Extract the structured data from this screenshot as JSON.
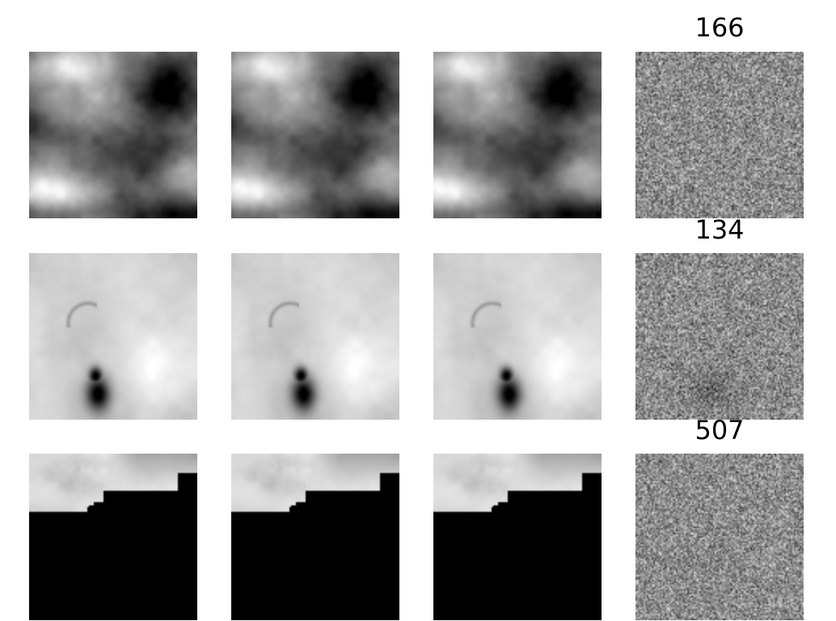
{
  "rows": [
    {
      "title": "166",
      "panels": [
        "input-frame-1",
        "input-frame-2",
        "input-frame-3",
        "noise-field"
      ]
    },
    {
      "title": "134",
      "panels": [
        "input-frame-1",
        "input-frame-2",
        "input-frame-3",
        "noise-field"
      ]
    },
    {
      "title": "507",
      "panels": [
        "input-frame-1",
        "input-frame-2",
        "input-frame-3",
        "noise-field"
      ]
    }
  ]
}
